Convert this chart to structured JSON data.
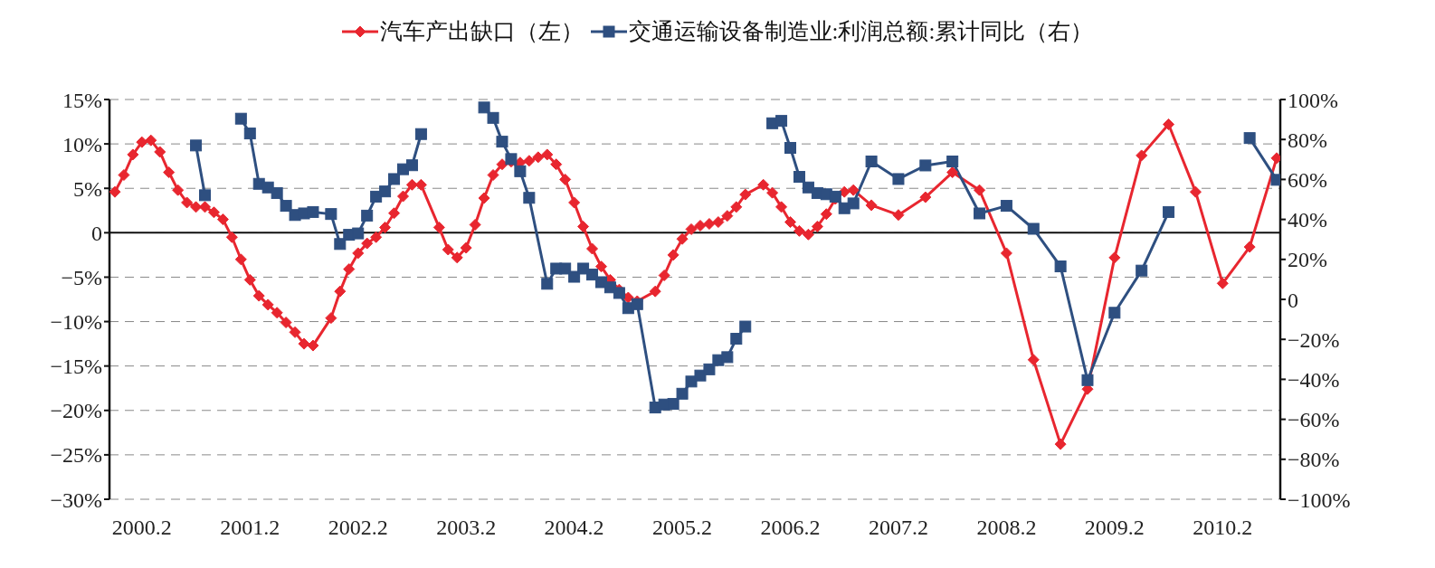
{
  "chart_data": {
    "type": "line",
    "legend": "top",
    "grid": "y",
    "xlim": [
      "1999-10-13",
      "2010-08-13"
    ],
    "xticks": [
      {
        "value": "2000-02",
        "label": "2000.2"
      },
      {
        "value": "2001-02",
        "label": "2001.2"
      },
      {
        "value": "2002-02",
        "label": "2002.2"
      },
      {
        "value": "2003-02",
        "label": "2003.2"
      },
      {
        "value": "2004-02",
        "label": "2004.2"
      },
      {
        "value": "2005-02",
        "label": "2005.2"
      },
      {
        "value": "2006-02",
        "label": "2006.2"
      },
      {
        "value": "2007-02",
        "label": "2007.2"
      },
      {
        "value": "2008-02",
        "label": "2008.2"
      },
      {
        "value": "2009-02",
        "label": "2009.2"
      },
      {
        "value": "2010-02",
        "label": "2010.2"
      }
    ],
    "ylim": [
      -30,
      15
    ],
    "yticks": [
      {
        "value": 15,
        "label": "15%"
      },
      {
        "value": 10,
        "label": "10%"
      },
      {
        "value": 5,
        "label": "5%"
      },
      0,
      {
        "value": -5,
        "label": "−5%"
      },
      {
        "value": -10,
        "label": "−10%"
      },
      {
        "value": -15,
        "label": "−15%"
      },
      {
        "value": -20,
        "label": "−20%"
      },
      {
        "value": -25,
        "label": "−25%"
      },
      {
        "value": -30,
        "label": "−30%"
      }
    ],
    "y2lim": [
      -100,
      100
    ],
    "y2ticks": [
      {
        "value": 100,
        "label": "100%"
      },
      {
        "value": 80,
        "label": "80%"
      },
      {
        "value": 60,
        "label": "60%"
      },
      {
        "value": 40,
        "label": "40%"
      },
      {
        "value": 20,
        "label": "20%"
      },
      0,
      {
        "value": -20,
        "label": "−20%"
      },
      {
        "value": -40,
        "label": "−40%"
      },
      {
        "value": -60,
        "label": "−60%"
      },
      {
        "value": -80,
        "label": "−80%"
      },
      {
        "value": -100,
        "label": "−100%"
      }
    ],
    "series": [
      {
        "name": "汽车产出缺口（左）",
        "color": "#e8262f",
        "marker": "diamond",
        "x": [
          "1999-11",
          "1999-12",
          "2000-01",
          "2000-02",
          "2000-03",
          "2000-04",
          "2000-05",
          "2000-06",
          "2000-07",
          "2000-08",
          "2000-09",
          "2000-10",
          "2000-11",
          "2000-12",
          "2001-01",
          "2001-02",
          "2001-03",
          "2001-04",
          "2001-05",
          "2001-06",
          "2001-07",
          "2001-08",
          "2001-09",
          "2001-11",
          "2001-12",
          "2002-01",
          "2002-02",
          "2002-03",
          "2002-04",
          "2002-05",
          "2002-06",
          "2002-07",
          "2002-08",
          "2002-09",
          "2002-11",
          "2002-12",
          "2003-01",
          "2003-02",
          "2003-03",
          "2003-04",
          "2003-05",
          "2003-06",
          "2003-07",
          "2003-08",
          "2003-09",
          "2003-10",
          "2003-11",
          "2003-12",
          "2004-01",
          "2004-02",
          "2004-03",
          "2004-04",
          "2004-05",
          "2004-06",
          "2004-07",
          "2004-08",
          "2004-09",
          "2004-11",
          "2004-12",
          "2005-01",
          "2005-02",
          "2005-03",
          "2005-04",
          "2005-05",
          "2005-06",
          "2005-07",
          "2005-08",
          "2005-09",
          "2005-11",
          "2005-12",
          "2006-01",
          "2006-02",
          "2006-03",
          "2006-04",
          "2006-05",
          "2006-06",
          "2006-07",
          "2006-08",
          "2006-09",
          "2006-11",
          "2007-02",
          "2007-05",
          "2007-08",
          "2007-11",
          "2008-02",
          "2008-05",
          "2008-08",
          "2008-11",
          "2009-02",
          "2009-05",
          "2009-08",
          "2009-11",
          "2010-02",
          "2010-05",
          "2010-08"
        ],
        "values": [
          4.6,
          6.5,
          8.8,
          10.2,
          10.4,
          9.1,
          6.8,
          4.8,
          3.4,
          2.9,
          2.9,
          2.3,
          1.5,
          -0.5,
          -3.0,
          -5.3,
          -7.1,
          -8.1,
          -9.0,
          -10.1,
          -11.2,
          -12.5,
          -12.7,
          -9.6,
          -6.6,
          -4.1,
          -2.3,
          -1.2,
          -0.5,
          0.6,
          2.2,
          4.1,
          5.4,
          5.4,
          0.6,
          -1.9,
          -2.8,
          -1.7,
          0.9,
          3.9,
          6.5,
          7.7,
          8.0,
          7.9,
          8.1,
          8.5,
          8.8,
          7.7,
          6.0,
          3.4,
          0.7,
          -1.8,
          -3.8,
          -5.3,
          -6.4,
          -7.3,
          -7.7,
          -6.6,
          -4.8,
          -2.5,
          -0.7,
          0.4,
          0.8,
          1.0,
          1.2,
          1.9,
          2.9,
          4.3,
          5.4,
          4.5,
          2.9,
          1.2,
          0.2,
          -0.2,
          0.7,
          2.1,
          3.8,
          4.6,
          4.8,
          3.1,
          2.0,
          4.0,
          6.8,
          4.8,
          -2.3,
          -14.3,
          -23.8,
          -17.6,
          -2.8,
          8.7,
          12.2,
          4.6,
          -5.7,
          -1.6,
          8.4
        ]
      },
      {
        "name": "交通运输设备制造业:利润总额:累计同比（右）",
        "color": "#2e4f80",
        "marker": "square",
        "axis": "y2",
        "x": [
          "2000-08",
          "2000-09",
          "2000-10",
          "2001-01",
          "2001-02",
          "2001-03",
          "2001-04",
          "2001-05",
          "2001-06",
          "2001-07",
          "2001-08",
          "2001-09",
          "2001-11",
          "2001-12",
          "2002-01",
          "2002-02",
          "2002-03",
          "2002-04",
          "2002-05",
          "2002-06",
          "2002-07",
          "2002-08",
          "2002-09",
          "2002-10",
          "2003-03",
          "2003-04",
          "2003-05",
          "2003-06",
          "2003-07",
          "2003-08",
          "2003-09",
          "2003-11",
          "2003-12",
          "2004-01",
          "2004-02",
          "2004-03",
          "2004-04",
          "2004-05",
          "2004-06",
          "2004-07",
          "2004-08",
          "2004-09",
          "2004-11",
          "2004-12",
          "2005-01",
          "2005-02",
          "2005-03",
          "2005-04",
          "2005-05",
          "2005-06",
          "2005-07",
          "2005-08",
          "2005-09",
          "2005-10",
          "2005-12",
          "2006-01",
          "2006-02",
          "2006-03",
          "2006-04",
          "2006-05",
          "2006-06",
          "2006-07",
          "2006-08",
          "2006-09",
          "2006-11",
          "2007-02",
          "2007-05",
          "2007-08",
          "2007-11",
          "2008-02",
          "2008-05",
          "2008-08",
          "2008-11",
          "2009-02",
          "2009-05",
          "2009-08",
          "2009-11",
          "2010-05",
          "2010-08"
        ],
        "values": [
          77,
          52.1,
          null,
          90.4,
          83,
          57.8,
          56,
          53.2,
          46.8,
          42.2,
          43.0,
          43.7,
          42.7,
          27.7,
          32.3,
          33.0,
          41.9,
          51.4,
          54,
          60.2,
          65.1,
          67.1,
          82.7,
          null,
          null,
          96,
          90.8,
          78.9,
          70.2,
          64.1,
          50.8,
          7.8,
          15.4,
          15.4,
          11.3,
          15.4,
          12.4,
          8.6,
          6.0,
          3.2,
          -4.4,
          -2.4,
          -54.1,
          -52.6,
          -52.3,
          -47.2,
          -41.1,
          -38.1,
          -35.0,
          -30.4,
          -28.9,
          -19.7,
          -13.6,
          null,
          88.1,
          89.3,
          75.8,
          61.3,
          56,
          53.2,
          52.6,
          51.4,
          45.6,
          48.0,
          69.0,
          60.2,
          67.0,
          69.0,
          43.0,
          46.8,
          35.3,
          16.5,
          -40.4,
          -6.7,
          14.4,
          43.7,
          null,
          80.7,
          59.8
        ]
      }
    ]
  }
}
